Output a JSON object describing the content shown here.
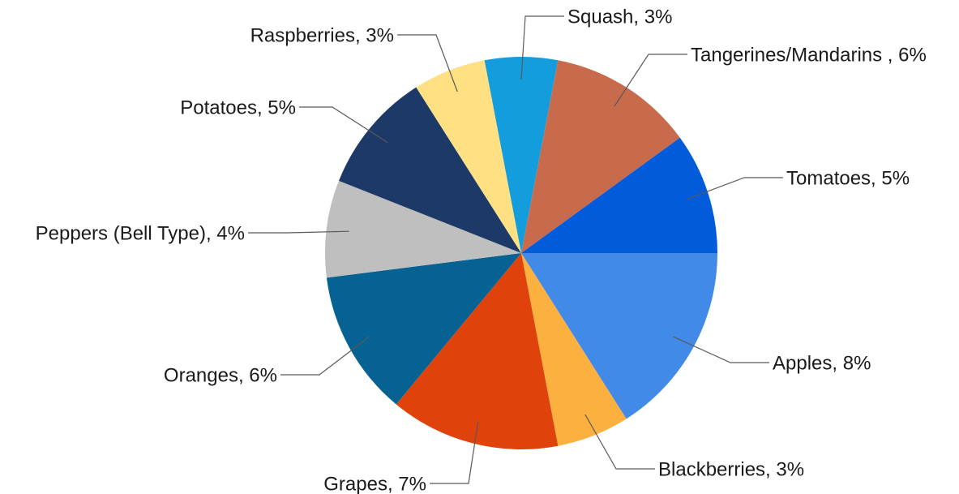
{
  "chart_data": {
    "type": "pie",
    "slices": [
      {
        "label": "Apples, 8%",
        "value": 8,
        "color": "#418ae8"
      },
      {
        "label": "Blackberries, 3%",
        "value": 3,
        "color": "#fbb040"
      },
      {
        "label": "Grapes, 7%",
        "value": 7,
        "color": "#e0420b"
      },
      {
        "label": "Oranges, 6%",
        "value": 6,
        "color": "#066293"
      },
      {
        "label": "Peppers (Bell Type), 4%",
        "value": 4,
        "color": "#bfbfbf"
      },
      {
        "label": "Potatoes, 5%",
        "value": 5,
        "color": "#1c3967"
      },
      {
        "label": "Raspberries, 3%",
        "value": 3,
        "color": "#ffe083"
      },
      {
        "label": "Squash, 3%",
        "value": 3,
        "color": "#149ddd"
      },
      {
        "label": "Tangerines/Mandarins , 6%",
        "value": 6,
        "color": "#c86b4c"
      },
      {
        "label": "Tomatoes, 5%",
        "value": 5,
        "color": "#015bdb"
      }
    ],
    "start": "3 o'clock",
    "direction": "clockwise",
    "legend": "none"
  }
}
